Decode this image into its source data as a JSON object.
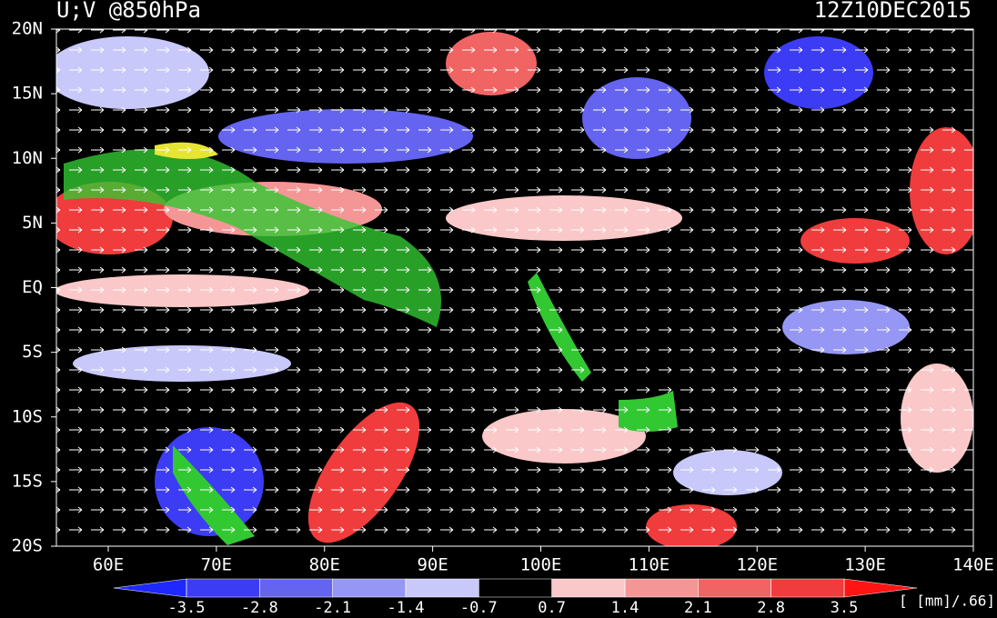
{
  "map": {
    "title": "U;V @850hPa",
    "time": "12Z10DEC2015",
    "lat_labels": [
      "20N",
      "15N",
      "10N",
      "5N",
      "EQ",
      "5S",
      "10S",
      "15S",
      "20S"
    ],
    "lon_labels": [
      "60E",
      "70E",
      "80E",
      "90E",
      "100E",
      "110E",
      "120E",
      "130E",
      "140E"
    ],
    "colorbar": {
      "levels": [
        -3.5,
        -2.8,
        -2.1,
        -1.4,
        -0.7,
        0.7,
        1.4,
        2.1,
        2.8,
        3.5
      ],
      "colors": [
        "#1e28ff",
        "#3c3cf5",
        "#6464f0",
        "#9696f5",
        "#c8c8fa",
        "#000000",
        "#fac8c8",
        "#f59696",
        "#f06464",
        "#f03c3c",
        "#ff1414"
      ]
    },
    "unit_label": "[ [mm]/.66]"
  }
}
